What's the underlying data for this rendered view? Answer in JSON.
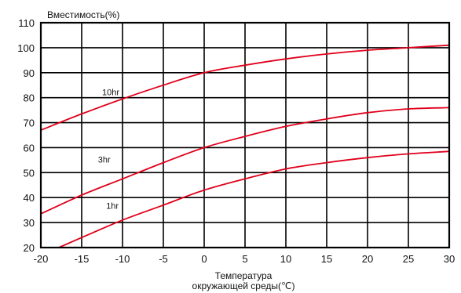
{
  "chart_data": {
    "type": "line",
    "title": "",
    "ylabel": "Вместимость(%)",
    "xlabel_line1": "Температура",
    "xlabel_line2": "окружающей среды(℃)",
    "xlim": [
      -20,
      30
    ],
    "ylim": [
      20,
      110
    ],
    "xticks": [
      -20,
      -15,
      -10,
      -5,
      0,
      5,
      10,
      15,
      20,
      25,
      30
    ],
    "yticks": [
      20,
      30,
      40,
      50,
      60,
      70,
      80,
      90,
      100,
      110
    ],
    "grid": true,
    "colors": {
      "series": "#e0001b",
      "grid": "#000000",
      "frame": "#000000"
    },
    "series": [
      {
        "name": "10hr",
        "label_at": [
          -12.5,
          81
        ],
        "points": [
          [
            -20,
            67
          ],
          [
            -15,
            73.5
          ],
          [
            -10,
            79.5
          ],
          [
            -5,
            85
          ],
          [
            0,
            90
          ],
          [
            5,
            93
          ],
          [
            10,
            95.5
          ],
          [
            15,
            97.5
          ],
          [
            20,
            99
          ],
          [
            25,
            100
          ],
          [
            30,
            101
          ]
        ]
      },
      {
        "name": "3hr",
        "label_at": [
          -13,
          54
        ],
        "points": [
          [
            -20,
            33.5
          ],
          [
            -15,
            41
          ],
          [
            -10,
            47.5
          ],
          [
            -5,
            54
          ],
          [
            0,
            60
          ],
          [
            5,
            64.5
          ],
          [
            10,
            68.5
          ],
          [
            15,
            71.5
          ],
          [
            20,
            74
          ],
          [
            25,
            75.5
          ],
          [
            30,
            76
          ]
        ]
      },
      {
        "name": "1hr",
        "label_at": [
          -12,
          35.5
        ],
        "points": [
          [
            -17.8,
            20
          ],
          [
            -15,
            24
          ],
          [
            -10,
            31
          ],
          [
            -5,
            37
          ],
          [
            0,
            43
          ],
          [
            5,
            47.5
          ],
          [
            10,
            51.5
          ],
          [
            15,
            54
          ],
          [
            20,
            56
          ],
          [
            25,
            57.5
          ],
          [
            30,
            58.5
          ]
        ]
      }
    ]
  }
}
